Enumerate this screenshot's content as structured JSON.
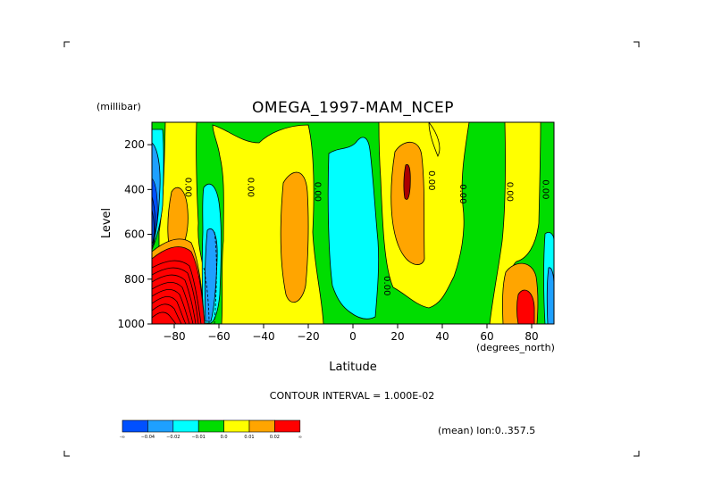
{
  "chart_data": {
    "type": "heatmap",
    "title": "OMEGA_1997-MAM_NCEP",
    "y_unit": "(millibar)",
    "xlabel": "Latitude",
    "x_unit": "(degrees_north)",
    "ylabel": "Level",
    "xlim": [
      -90,
      90
    ],
    "ylim": [
      1000,
      100
    ],
    "x_ticks": [
      -80,
      -60,
      -40,
      -20,
      0,
      20,
      40,
      60,
      80
    ],
    "x_tick_labels": [
      "−80",
      "−60",
      "−40",
      "−20",
      "0",
      "20",
      "40",
      "60",
      "80"
    ],
    "y_ticks": [
      200,
      400,
      600,
      800,
      1000
    ],
    "y_tick_labels": [
      "200",
      "400",
      "600",
      "800",
      "1000"
    ],
    "contour_interval_text": "CONTOUR INTERVAL = 1.000E-02",
    "mean_text": "(mean) lon:0..357.5",
    "contour_labels": [
      {
        "lat": -75,
        "lev": 390,
        "text": "0.00"
      },
      {
        "lat": -47,
        "lev": 390,
        "text": "0.00"
      },
      {
        "lat": -17,
        "lev": 410,
        "text": "0.00"
      },
      {
        "lat": 14,
        "lev": 830,
        "text": "0.00"
      },
      {
        "lat": 34,
        "lev": 360,
        "text": "0.00"
      },
      {
        "lat": 48,
        "lev": 420,
        "text": "0.00"
      },
      {
        "lat": 69,
        "lev": 410,
        "text": "0.00"
      },
      {
        "lat": 85,
        "lev": 400,
        "text": "0.00"
      }
    ],
    "colorbar": {
      "colors": [
        "#0050ff",
        "#1ea0ff",
        "#00ffff",
        "#00dd00",
        "#ffff00",
        "#ffa500",
        "#ff0000"
      ],
      "labels": [
        "-∞",
        "−0.04",
        "−0.02",
        "−0.01",
        "0.0",
        "0.01",
        "0.02",
        "∞"
      ]
    },
    "colors": {
      "strong_down": "#0050ff",
      "down": "#1ea0ff",
      "weak_down": "#00ffff",
      "near_zero": "#00dd00",
      "weak_up": "#ffff00",
      "up": "#ffa500",
      "strong_up": "#ff0000",
      "max_core": "#aa0000",
      "contour_line": "#000000"
    }
  }
}
